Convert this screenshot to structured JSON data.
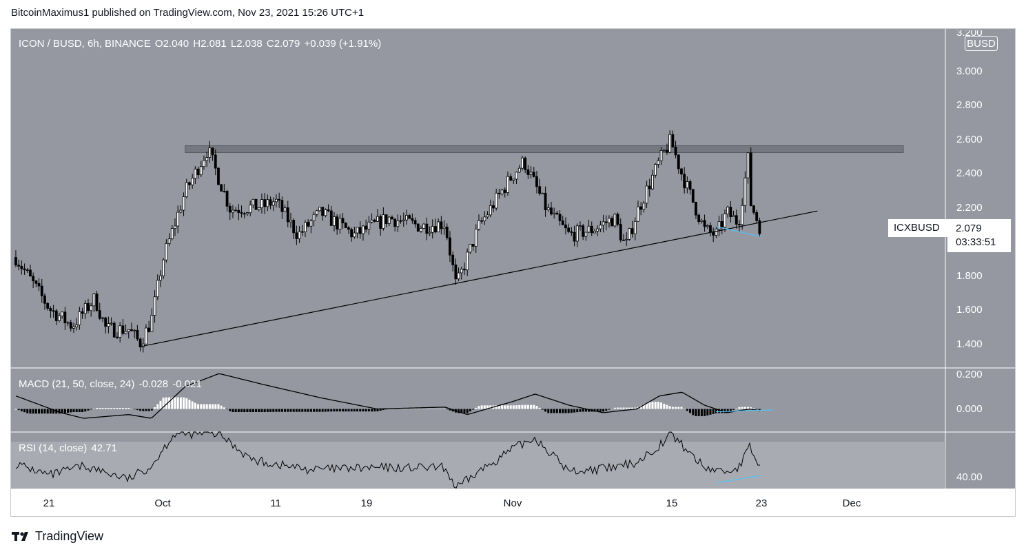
{
  "header": {
    "published_by": "BitcoinMaximus1 published on TradingView.com, Nov 23, 2021 15:26 UTC+1"
  },
  "legend": {
    "title": "ICON / BUSD, 6h, BINANCE",
    "o_label": "O",
    "o_value": "2.040",
    "h_label": "H",
    "h_value": "2.081",
    "l_label": "L",
    "l_value": "2.038",
    "c_label": "C",
    "c_value": "2.079",
    "change": "+0.039 (+1.91%)"
  },
  "macd_legend": {
    "title": "MACD (21, 50, close, 24)",
    "v1": "-0.028",
    "v2": "-0.021"
  },
  "rsi_legend": {
    "title": "RSI (14, close)",
    "value": "42.71"
  },
  "price_axis": {
    "currency_tag": "BUSD",
    "top_partial": "3.200",
    "labels": [
      "3.000",
      "2.800",
      "2.600",
      "2.400",
      "2.200",
      "1.800",
      "1.600",
      "1.400"
    ]
  },
  "macd_axis": {
    "labels": [
      "0.200",
      "0.000"
    ]
  },
  "rsi_axis": {
    "labels": [
      "40.00"
    ]
  },
  "last_price": {
    "symbol": "ICXBUSD",
    "price": "2.079",
    "countdown": "03:33:51"
  },
  "time_axis": {
    "labels": [
      "21",
      "Oct",
      "11",
      "19",
      "Nov",
      "15",
      "23",
      "Dec"
    ]
  },
  "footer": {
    "brand": "TradingView"
  },
  "colors": {
    "panel_bg": "#9598a1",
    "rsi_band": "#a9abb2",
    "candle": "#000000",
    "resistance_zone": "#6b6e76",
    "macd_pos": "#ffffff",
    "macd_neg": "#000000",
    "divergence": "#4fc3f7"
  },
  "chart_data": {
    "type": "candlestick",
    "title": "ICON / BUSD, 6h, BINANCE",
    "ylim": [
      1.28,
      3.25
    ],
    "resistance_zone": [
      2.53,
      2.57
    ],
    "support_line": {
      "from": [
        "Sep 29",
        1.4
      ],
      "to": [
        "Nov 28",
        2.19
      ]
    },
    "close_path": [
      [
        "Sep 18",
        1.92
      ],
      [
        "Sep 21",
        1.62
      ],
      [
        "Sep 23",
        1.52
      ],
      [
        "Sep 25",
        1.68
      ],
      [
        "Sep 26",
        1.5
      ],
      [
        "Sep 28",
        1.5
      ],
      [
        "Sep 29",
        1.42
      ],
      [
        "Sep 30",
        1.55
      ],
      [
        "Oct 1",
        1.9
      ],
      [
        "Oct 3",
        2.3
      ],
      [
        "Oct 5",
        2.55
      ],
      [
        "Oct 7",
        2.2
      ],
      [
        "Oct 10",
        2.22
      ],
      [
        "Oct 11",
        2.25
      ],
      [
        "Oct 13",
        2.05
      ],
      [
        "Oct 15",
        2.18
      ],
      [
        "Oct 18",
        2.05
      ],
      [
        "Oct 21",
        2.15
      ],
      [
        "Oct 24",
        2.1
      ],
      [
        "Oct 26",
        2.12
      ],
      [
        "Oct 27",
        1.75
      ],
      [
        "Oct 29",
        2.1
      ],
      [
        "Nov 1",
        2.4
      ],
      [
        "Nov 2",
        2.48
      ],
      [
        "Nov 4",
        2.2
      ],
      [
        "Nov 6",
        2.05
      ],
      [
        "Nov 8",
        2.08
      ],
      [
        "Nov 10",
        2.15
      ],
      [
        "Nov 11",
        1.98
      ],
      [
        "Nov 12",
        2.18
      ],
      [
        "Nov 14",
        2.48
      ],
      [
        "Nov 15",
        2.6
      ],
      [
        "Nov 16",
        2.4
      ],
      [
        "Nov 18",
        2.08
      ],
      [
        "Nov 19",
        2.05
      ],
      [
        "Nov 20",
        2.18
      ],
      [
        "Nov 21",
        2.12
      ],
      [
        "Nov 22",
        2.56
      ],
      [
        "Nov 22",
        2.25
      ],
      [
        "Nov 23",
        2.079
      ]
    ],
    "macd": {
      "ylim": [
        -0.12,
        0.22
      ]
    },
    "rsi": {
      "ylim": [
        33,
        63
      ]
    }
  }
}
